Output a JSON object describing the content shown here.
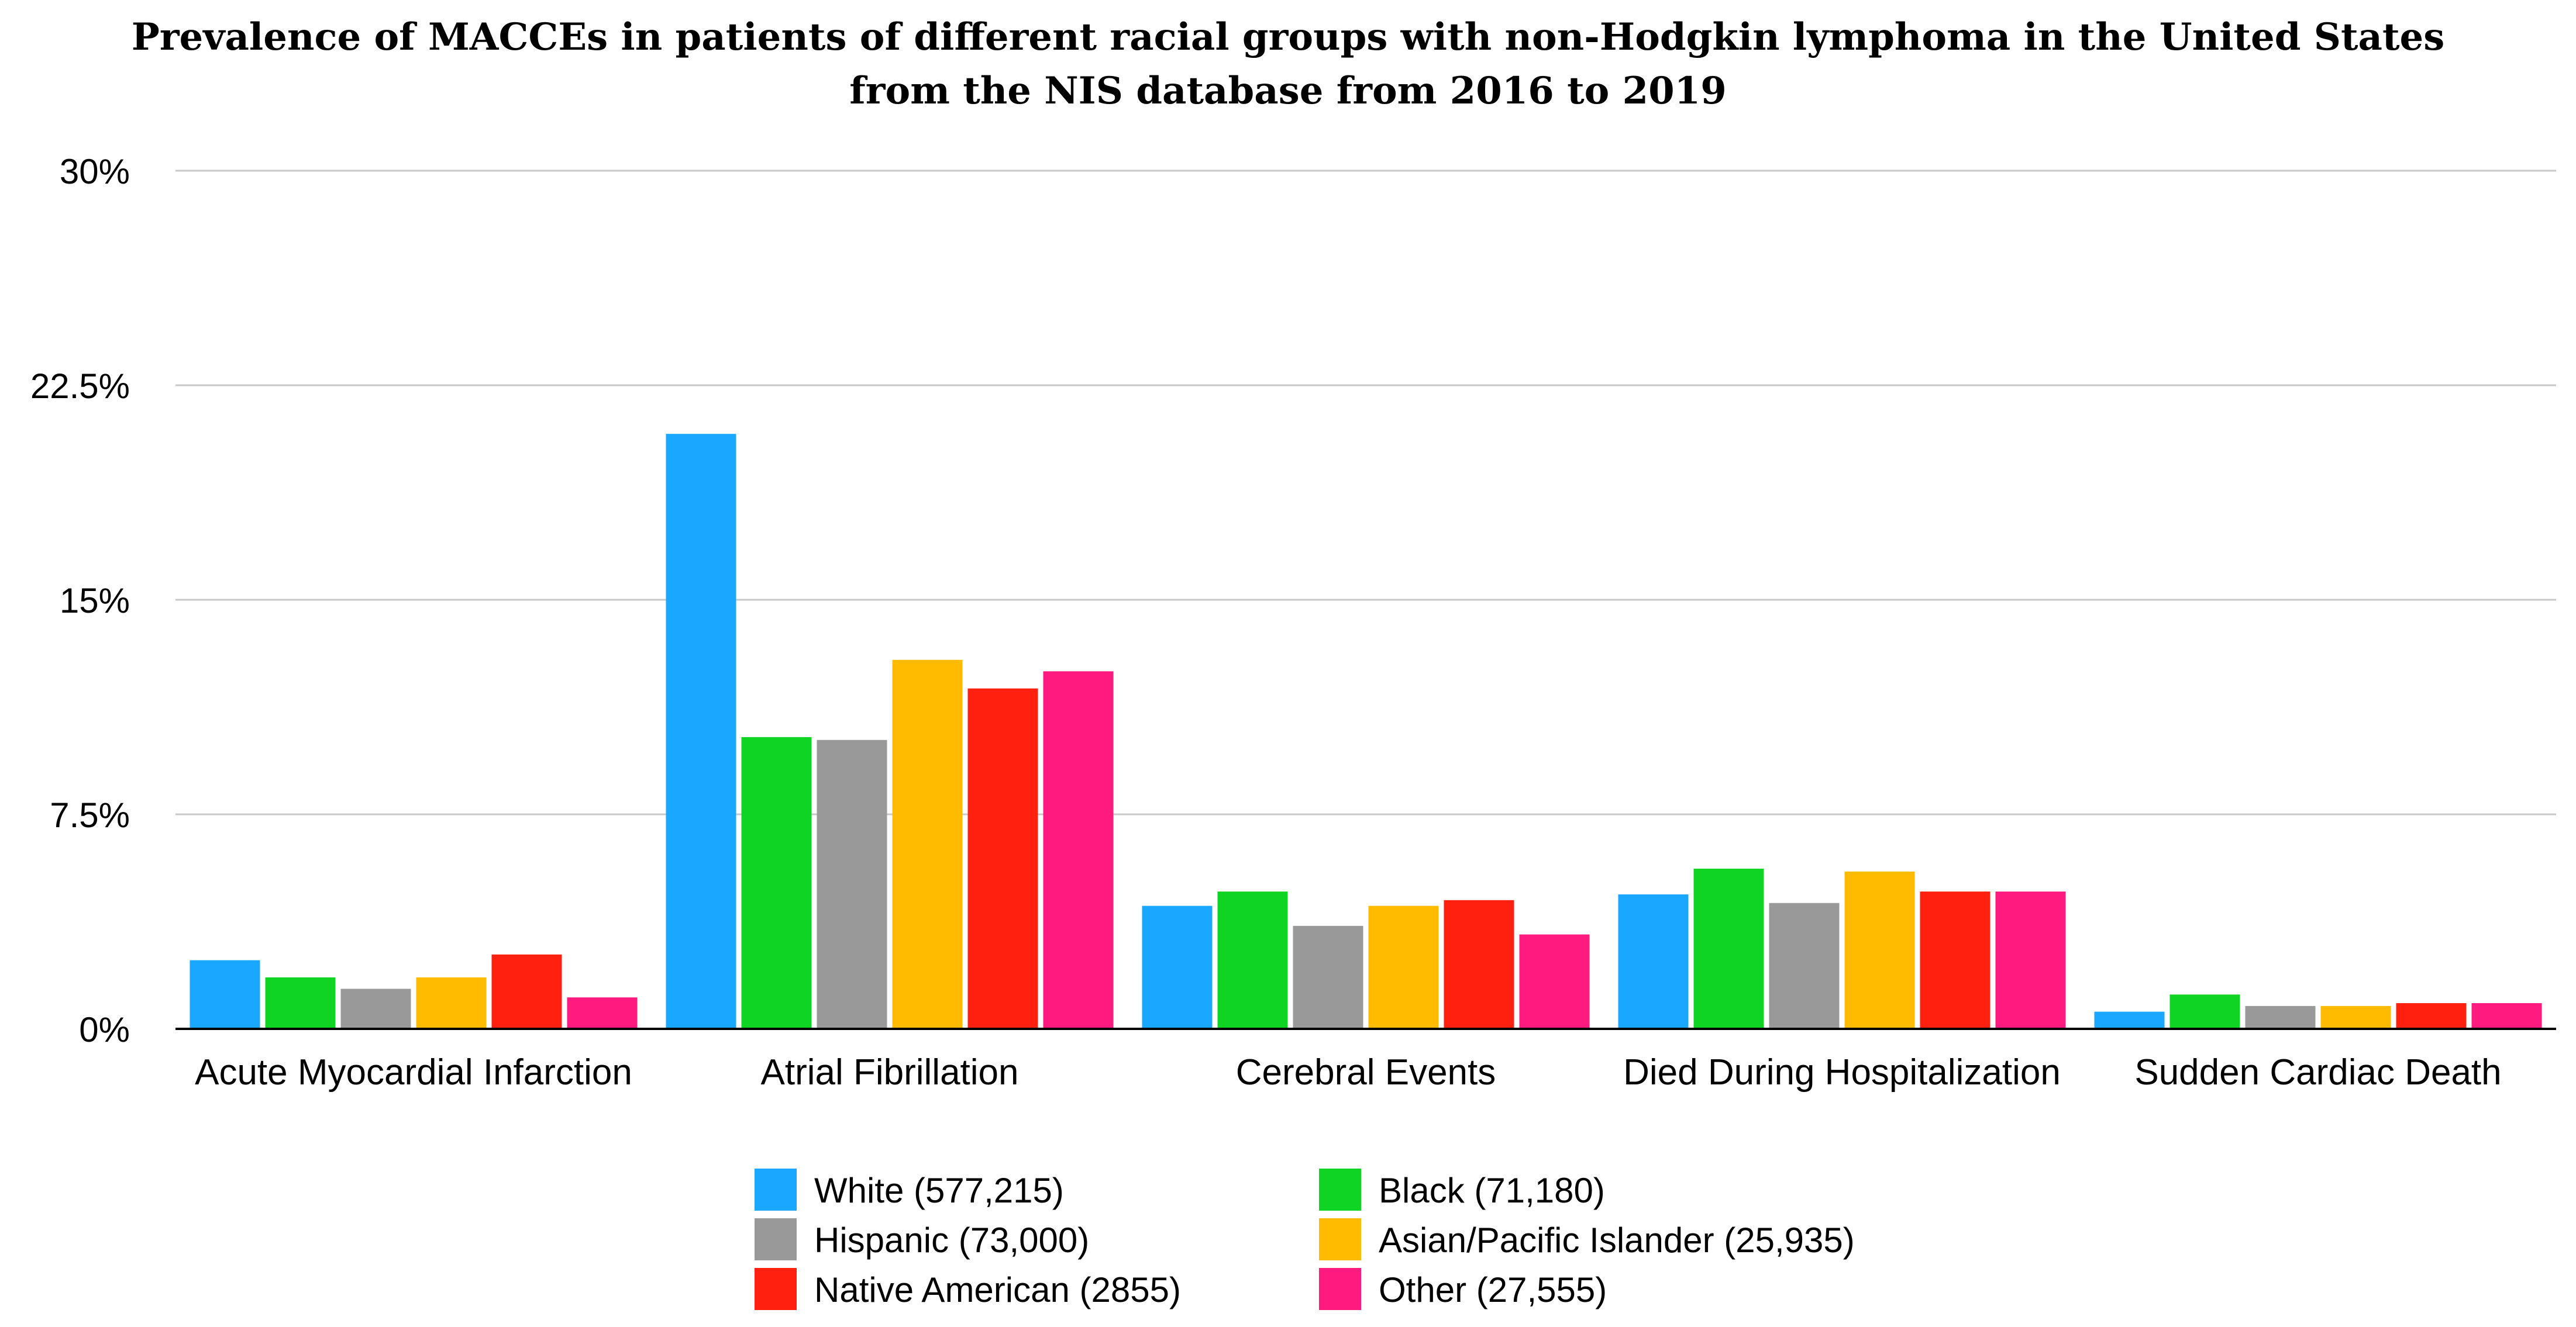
{
  "chart_data": {
    "type": "bar",
    "title_lines": [
      "Prevalence of MACCEs in patients of different racial groups with non-Hodgkin lymphoma in the United States",
      "from the NIS database from 2016 to 2019"
    ],
    "xlabel": "",
    "ylabel": "",
    "ylim": [
      0,
      30
    ],
    "yticks": [
      {
        "value": 0,
        "label": "0%"
      },
      {
        "value": 7.5,
        "label": "7.5%"
      },
      {
        "value": 15,
        "label": "15%"
      },
      {
        "value": 22.5,
        "label": "22.5%"
      },
      {
        "value": 30,
        "label": "30%"
      }
    ],
    "grid": true,
    "legend_position": "bottom",
    "categories": [
      "Acute Myocardial Infarction",
      "Atrial Fibrillation",
      "Cerebral Events",
      "Died During Hospitalization",
      "Sudden Cardiac Death"
    ],
    "series": [
      {
        "name": "White (577,215)",
        "color": "#1aa7ff",
        "values": [
          2.4,
          20.8,
          4.3,
          4.7,
          0.6
        ]
      },
      {
        "name": "Black (71,180)",
        "color": "#10d424",
        "values": [
          1.8,
          10.2,
          4.8,
          5.6,
          1.2
        ]
      },
      {
        "name": "Hispanic (73,000)",
        "color": "#999999",
        "values": [
          1.4,
          10.1,
          3.6,
          4.4,
          0.8
        ]
      },
      {
        "name": "Asian/Pacific Islander (25,935)",
        "color": "#ffbb00",
        "values": [
          1.8,
          12.9,
          4.3,
          5.5,
          0.8
        ]
      },
      {
        "name": "Native American (2855)",
        "color": "#ff2010",
        "values": [
          2.6,
          11.9,
          4.5,
          4.8,
          0.9
        ]
      },
      {
        "name": "Other (27,555)",
        "color": "#ff1a7f",
        "values": [
          1.1,
          12.5,
          3.3,
          4.8,
          0.9
        ]
      }
    ]
  }
}
